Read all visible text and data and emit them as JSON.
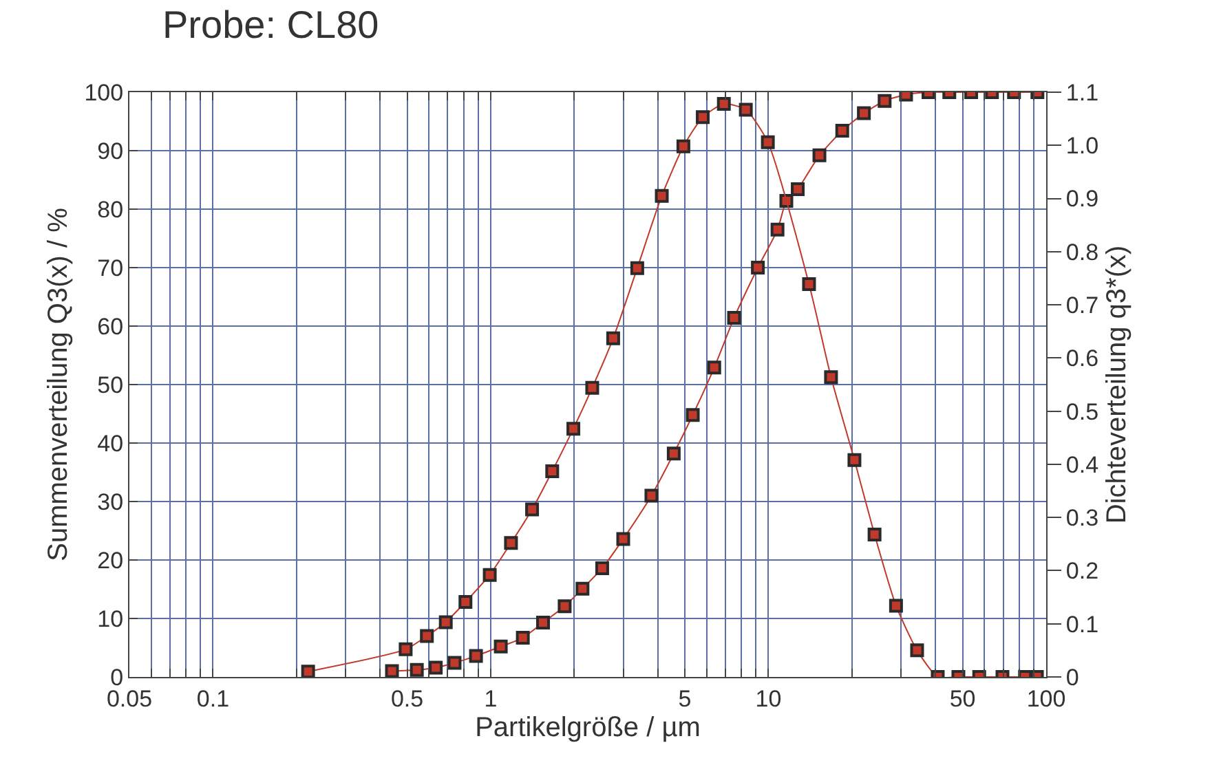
{
  "chart_data": {
    "type": "line",
    "title": "Probe: CL80",
    "xlabel": "Partikelgröße / µm",
    "ylabel": "Summenverteilung Q3(x) / %",
    "y2label": "Dichteverteilung q3*(x)",
    "log": "x",
    "grid": true,
    "marker": "square",
    "line_style": "solid",
    "xlim": [
      0.05,
      100
    ],
    "xticks": [
      0.05,
      {
        "value": 0.06,
        "label": null
      },
      {
        "value": 0.07,
        "label": null
      },
      {
        "value": 0.08,
        "label": null
      },
      {
        "value": 0.09,
        "label": null
      },
      0.1,
      {
        "value": 0.2,
        "label": null
      },
      {
        "value": 0.3,
        "label": null
      },
      {
        "value": 0.4,
        "label": null
      },
      0.5,
      {
        "value": 0.6,
        "label": null
      },
      {
        "value": 0.7,
        "label": null
      },
      {
        "value": 0.8,
        "label": null
      },
      {
        "value": 0.9,
        "label": null
      },
      1,
      {
        "value": 2,
        "label": null
      },
      {
        "value": 3,
        "label": null
      },
      {
        "value": 4,
        "label": null
      },
      5,
      {
        "value": 6,
        "label": null
      },
      {
        "value": 7,
        "label": null
      },
      {
        "value": 8,
        "label": null
      },
      {
        "value": 9,
        "label": null
      },
      10,
      {
        "value": 20,
        "label": null
      },
      {
        "value": 30,
        "label": null
      },
      {
        "value": 40,
        "label": null
      },
      50,
      {
        "value": 60,
        "label": null
      },
      {
        "value": 70,
        "label": null
      },
      {
        "value": 80,
        "label": null
      },
      {
        "value": 90,
        "label": null
      },
      100
    ],
    "ylim": [
      0,
      100
    ],
    "yticks": [
      0,
      10,
      20,
      30,
      40,
      50,
      60,
      70,
      80,
      90,
      100
    ],
    "y2lim": [
      0,
      1.1
    ],
    "y2ticks": [
      0,
      0.1,
      0.2,
      0.3,
      0.4,
      0.5,
      0.6,
      0.7,
      0.8,
      0.9,
      {
        "value": 1.0,
        "label": "1.0"
      },
      1.1
    ],
    "series": [
      {
        "color": "#c0392b",
        "x": [
          0.441,
          0.542,
          0.634,
          0.741,
          0.885,
          1.087,
          1.305,
          1.543,
          1.846,
          2.14,
          2.52,
          3.0,
          3.79,
          4.56,
          5.34,
          6.38,
          7.52,
          9.16,
          10.78,
          11.6,
          12.75,
          15.26,
          18.44,
          22.06,
          26.2,
          31.3,
          37.7,
          44.8,
          53.7,
          63.8,
          76.6,
          93.0
        ],
        "values": [
          1.0,
          1.2,
          1.6,
          2.4,
          3.6,
          5.2,
          6.7,
          9.3,
          12.1,
          15.1,
          18.6,
          23.6,
          31.0,
          38.2,
          44.8,
          52.9,
          61.4,
          70.0,
          76.5,
          81.4,
          83.4,
          89.2,
          93.4,
          96.4,
          98.5,
          99.6,
          100,
          100,
          100,
          100,
          100,
          100
        ]
      },
      {
        "color": "#c0392b",
        "axis": "y2",
        "x": [
          0.22,
          0.494,
          0.589,
          0.689,
          0.811,
          0.992,
          1.183,
          1.409,
          1.665,
          1.984,
          2.32,
          2.76,
          3.37,
          4.13,
          4.94,
          5.8,
          6.91,
          8.29,
          9.95,
          14.0,
          16.8,
          20.4,
          24.1,
          28.8,
          34.3,
          40.7,
          48.3,
          57.4,
          69.6,
          83.9,
          92.6
        ],
        "values": [
          0.01,
          0.052,
          0.077,
          0.103,
          0.141,
          0.192,
          0.252,
          0.315,
          0.387,
          0.467,
          0.544,
          0.637,
          0.769,
          0.905,
          0.998,
          1.053,
          1.078,
          1.067,
          1.006,
          0.739,
          0.564,
          0.408,
          0.268,
          0.134,
          0.05,
          0,
          0,
          0,
          0,
          0,
          0
        ]
      }
    ]
  }
}
